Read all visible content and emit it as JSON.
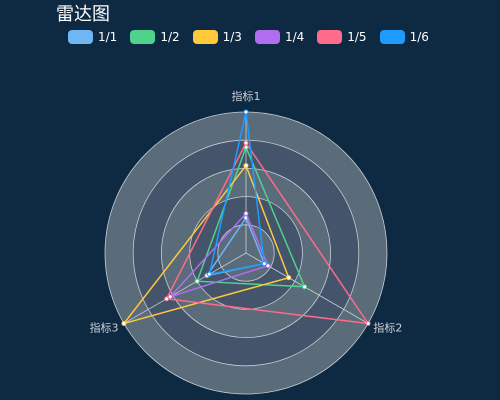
{
  "title": "雷达图",
  "colors": {
    "background": "#0e2a43",
    "ring_light": "#5a6b7a",
    "ring_dark": "#44546a",
    "ring_line": "#c8ced6"
  },
  "chart_data": {
    "type": "radar",
    "title": "雷达图",
    "indicators": [
      {
        "name": "指标1",
        "max": 100
      },
      {
        "name": "指标2",
        "max": 100
      },
      {
        "name": "指标3",
        "max": 100
      }
    ],
    "legend_position": "top-left",
    "series": [
      {
        "name": "1/1",
        "color": "#6fb6f4",
        "values": [
          25,
          15,
          32
        ]
      },
      {
        "name": "1/2",
        "color": "#4fd28c",
        "values": [
          75,
          48,
          40
        ]
      },
      {
        "name": "1/3",
        "color": "#ffc83d",
        "values": [
          62,
          35,
          100
        ]
      },
      {
        "name": "1/4",
        "color": "#b06df0",
        "values": [
          28,
          18,
          62
        ]
      },
      {
        "name": "1/5",
        "color": "#ff6b8a",
        "values": [
          78,
          100,
          65
        ]
      },
      {
        "name": "1/6",
        "color": "#1f9bff",
        "values": [
          100,
          15,
          30
        ]
      }
    ]
  }
}
